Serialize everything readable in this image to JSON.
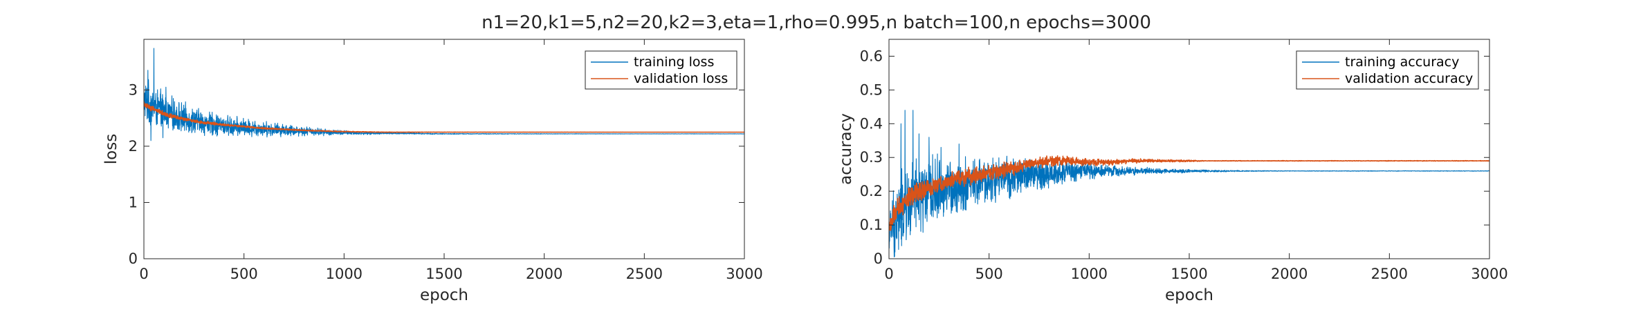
{
  "figure": {
    "title": "n1=20,k1=5,n2=20,k2=3,eta=1,rho=0.995,n batch=100,n epochs=3000"
  },
  "colors": {
    "training": "#0072BD",
    "validation": "#D95319",
    "axis": "#262626",
    "background": "#ffffff"
  },
  "chart_data": [
    {
      "type": "line",
      "xlabel": "epoch",
      "ylabel": "loss",
      "xlim": [
        0,
        3000
      ],
      "ylim": [
        0,
        3.9
      ],
      "xticks": [
        0,
        500,
        1000,
        1500,
        2000,
        2500,
        3000
      ],
      "yticks": [
        0,
        1,
        2,
        3
      ],
      "grid": false,
      "legend_position": "top-right",
      "series": [
        {
          "name": "training loss",
          "color": "#0072BD",
          "noisy": true,
          "x": [
            0,
            25,
            50,
            100,
            150,
            200,
            300,
            400,
            500,
            600,
            700,
            800,
            900,
            1000,
            1100,
            1200,
            1500,
            2000,
            2500,
            3000
          ],
          "y": [
            2.8,
            2.75,
            2.7,
            2.62,
            2.55,
            2.5,
            2.42,
            2.36,
            2.33,
            2.31,
            2.29,
            2.27,
            2.25,
            2.24,
            2.23,
            2.23,
            2.22,
            2.22,
            2.22,
            2.22
          ],
          "band": [
            0.45,
            0.45,
            0.42,
            0.38,
            0.34,
            0.3,
            0.26,
            0.22,
            0.19,
            0.16,
            0.13,
            0.1,
            0.07,
            0.05,
            0.03,
            0.02,
            0.01,
            0.005,
            0.003,
            0.003
          ],
          "spikes": [
            [
              50,
              3.74
            ],
            [
              20,
              3.35
            ],
            [
              35,
              2.1
            ],
            [
              110,
              3.05
            ],
            [
              95,
              2.15
            ]
          ]
        },
        {
          "name": "validation loss",
          "color": "#D95319",
          "noisy": true,
          "x": [
            0,
            25,
            50,
            100,
            150,
            200,
            300,
            400,
            500,
            600,
            700,
            800,
            900,
            1000,
            1200,
            1500,
            2000,
            2500,
            3000
          ],
          "y": [
            2.75,
            2.7,
            2.66,
            2.58,
            2.52,
            2.48,
            2.42,
            2.38,
            2.35,
            2.32,
            2.3,
            2.28,
            2.27,
            2.26,
            2.25,
            2.25,
            2.25,
            2.25,
            2.25
          ],
          "band": [
            0.06,
            0.06,
            0.06,
            0.05,
            0.04,
            0.035,
            0.03,
            0.025,
            0.02,
            0.018,
            0.015,
            0.012,
            0.01,
            0.008,
            0.005,
            0.003,
            0.002,
            0.001,
            0.001
          ]
        }
      ]
    },
    {
      "type": "line",
      "xlabel": "epoch",
      "ylabel": "accuracy",
      "xlim": [
        0,
        3000
      ],
      "ylim": [
        0,
        0.65
      ],
      "xticks": [
        0,
        500,
        1000,
        1500,
        2000,
        2500,
        3000
      ],
      "yticks": [
        0,
        0.1,
        0.2,
        0.3,
        0.4,
        0.5,
        0.6
      ],
      "grid": false,
      "legend_position": "top-right",
      "series": [
        {
          "name": "training accuracy",
          "color": "#0072BD",
          "noisy": true,
          "x": [
            0,
            20,
            50,
            100,
            150,
            200,
            300,
            400,
            500,
            600,
            700,
            800,
            900,
            1000,
            1100,
            1200,
            1400,
            1600,
            1800,
            2000,
            2500,
            3000
          ],
          "y": [
            0.07,
            0.1,
            0.13,
            0.16,
            0.18,
            0.2,
            0.21,
            0.22,
            0.23,
            0.24,
            0.25,
            0.25,
            0.26,
            0.26,
            0.26,
            0.26,
            0.26,
            0.26,
            0.26,
            0.26,
            0.26,
            0.26
          ],
          "band": [
            0.06,
            0.12,
            0.14,
            0.14,
            0.13,
            0.12,
            0.1,
            0.09,
            0.08,
            0.07,
            0.06,
            0.05,
            0.04,
            0.03,
            0.02,
            0.015,
            0.008,
            0.004,
            0.002,
            0.001,
            0.001,
            0.001
          ],
          "spikes": [
            [
              80,
              0.44
            ],
            [
              120,
              0.44
            ],
            [
              60,
              0.4
            ],
            [
              150,
              0.37
            ],
            [
              30,
              0.02
            ],
            [
              200,
              0.36
            ],
            [
              260,
              0.33
            ],
            [
              350,
              0.34
            ]
          ]
        },
        {
          "name": "validation accuracy",
          "color": "#D95319",
          "noisy": true,
          "x": [
            0,
            20,
            50,
            100,
            150,
            200,
            300,
            400,
            500,
            600,
            700,
            800,
            900,
            1000,
            1100,
            1200,
            1300,
            1400,
            1500,
            1600,
            2000,
            2500,
            3000
          ],
          "y": [
            0.09,
            0.12,
            0.15,
            0.18,
            0.2,
            0.21,
            0.23,
            0.245,
            0.255,
            0.265,
            0.28,
            0.29,
            0.29,
            0.285,
            0.285,
            0.29,
            0.29,
            0.29,
            0.29,
            0.29,
            0.29,
            0.29,
            0.29
          ],
          "band": [
            0.03,
            0.04,
            0.04,
            0.04,
            0.035,
            0.03,
            0.03,
            0.03,
            0.025,
            0.025,
            0.02,
            0.02,
            0.015,
            0.012,
            0.01,
            0.008,
            0.006,
            0.004,
            0.003,
            0.001,
            0.001,
            0.001,
            0.001
          ]
        }
      ]
    }
  ]
}
